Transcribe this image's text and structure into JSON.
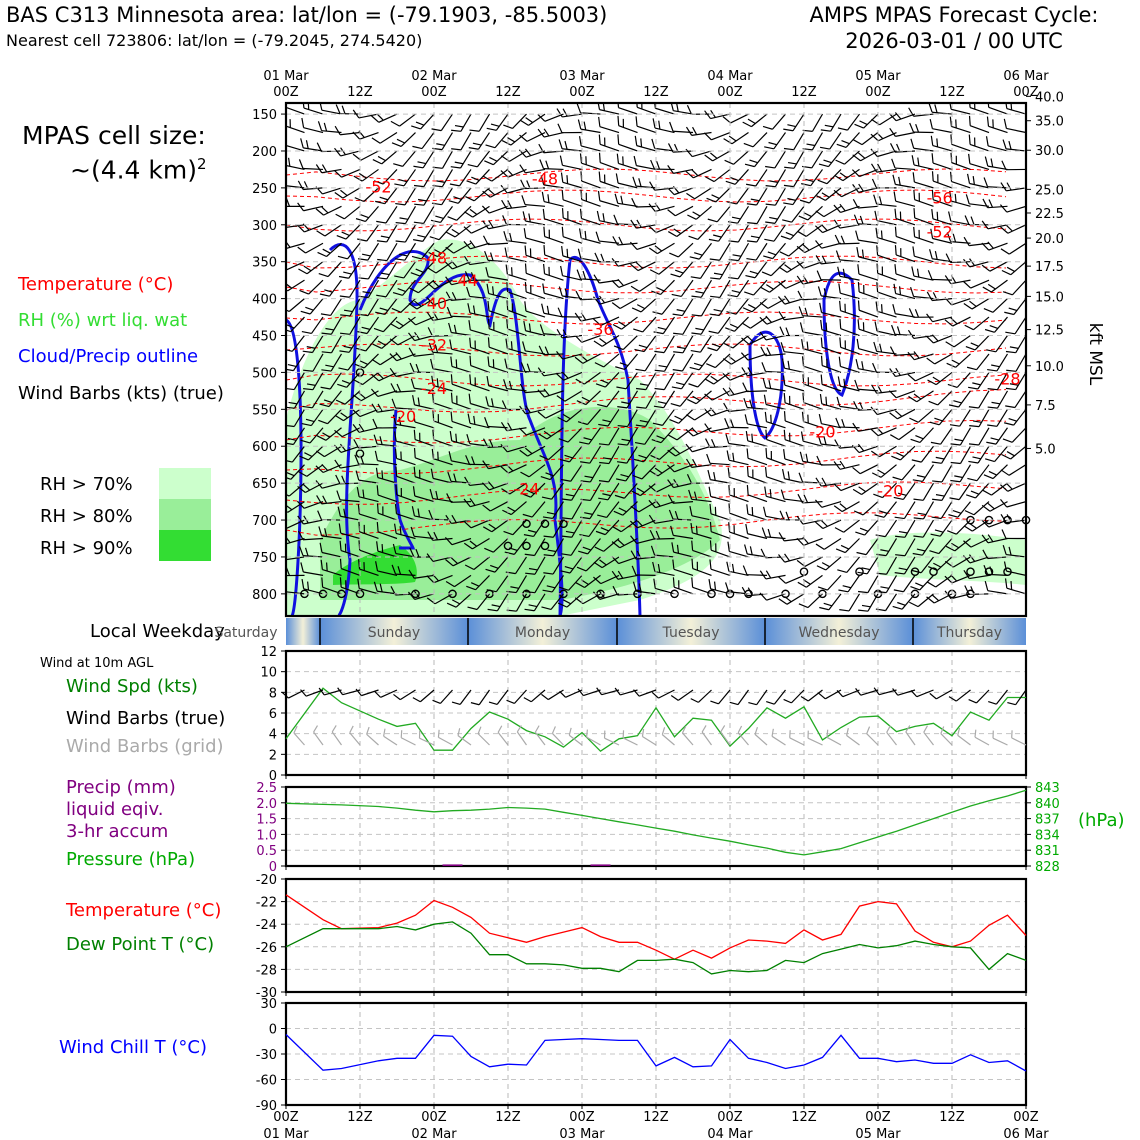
{
  "header": {
    "title_left": "BAS C313 Minnesota area: lat/lon = (-79.1903, -85.5003)",
    "subtitle_left": "Nearest cell 723806: lat/lon = (-79.2045, 274.5420)",
    "title_right_1": "AMPS MPAS Forecast Cycle:",
    "title_right_2": "2026-03-01 / 00 UTC"
  },
  "cell_size": {
    "line1": "MPAS cell size:",
    "line2_prefix": "~(4.4 km)",
    "line2_sup": "2"
  },
  "legend_top": [
    {
      "text": "Temperature (°C)",
      "color": "#ff0000"
    },
    {
      "text": "RH (%) wrt liq. wat",
      "color": "#33dd33"
    },
    {
      "text": "Cloud/Precip outline",
      "color": "#0000ff"
    },
    {
      "text": "Wind Barbs (kts) (true)",
      "color": "#000000"
    }
  ],
  "rh_legend": [
    {
      "text": "RH > 70%",
      "color": "#ccffcc"
    },
    {
      "text": "RH > 80%",
      "color": "#99ee99"
    },
    {
      "text": "RH > 90%",
      "color": "#33dd33"
    }
  ],
  "time_axis": {
    "top_days": [
      "01 Mar",
      "02 Mar",
      "03 Mar",
      "04 Mar",
      "05 Mar",
      "06 Mar"
    ],
    "hour_labels": [
      "00Z",
      "12Z",
      "00Z",
      "12Z",
      "00Z",
      "12Z",
      "00Z",
      "12Z",
      "00Z",
      "12Z",
      "00Z"
    ],
    "hour_step": 12,
    "total_hours": 120
  },
  "panel1": {
    "type": "cross-section",
    "pressure_ticks": [
      150,
      200,
      250,
      300,
      350,
      400,
      450,
      500,
      550,
      600,
      650,
      700,
      750,
      800
    ],
    "pressure_range": [
      135,
      830
    ],
    "height_axis_label": "kft MSL",
    "height_ticks": [
      {
        "p": 126,
        "label": "40.0"
      },
      {
        "p": 159,
        "label": "35.0"
      },
      {
        "p": 199,
        "label": "30.0"
      },
      {
        "p": 252,
        "label": "25.0"
      },
      {
        "p": 284,
        "label": "22.5"
      },
      {
        "p": 318,
        "label": "20.0"
      },
      {
        "p": 356,
        "label": "17.5"
      },
      {
        "p": 397,
        "label": "15.0"
      },
      {
        "p": 442,
        "label": "12.5"
      },
      {
        "p": 491,
        "label": "10.0"
      },
      {
        "p": 544,
        "label": "7.5"
      },
      {
        "p": 603,
        "label": "5.0"
      }
    ],
    "temp_labels": [
      {
        "text": "-52",
        "hour": 15,
        "p": 248
      },
      {
        "text": "-48",
        "hour": 42,
        "p": 237
      },
      {
        "text": "-56",
        "hour": 106,
        "p": 263
      },
      {
        "text": "-52",
        "hour": 106,
        "p": 309
      },
      {
        "text": "-48",
        "hour": 24,
        "p": 344
      },
      {
        "text": "-44",
        "hour": 29,
        "p": 375
      },
      {
        "text": "-40",
        "hour": 24,
        "p": 406
      },
      {
        "text": "-36",
        "hour": 51,
        "p": 441
      },
      {
        "text": "-32",
        "hour": 24,
        "p": 462
      },
      {
        "text": "-28",
        "hour": 117,
        "p": 508
      },
      {
        "text": "-24",
        "hour": 24,
        "p": 521
      },
      {
        "text": "-20",
        "hour": 19,
        "p": 559
      },
      {
        "text": "-20",
        "hour": 87,
        "p": 580
      },
      {
        "text": "-24",
        "hour": 39,
        "p": 657
      },
      {
        "text": "-20",
        "hour": 98,
        "p": 660
      }
    ]
  },
  "weekday_strip": {
    "label": "Local Weekday",
    "days": [
      "Saturday",
      "Sunday",
      "Monday",
      "Tuesday",
      "Wednesday",
      "Thursday"
    ]
  },
  "panel2": {
    "title": "Wind at 10m AGL",
    "legend": [
      {
        "text": "Wind Spd (kts)",
        "color": "#008000"
      },
      {
        "text": "Wind Barbs (true)",
        "color": "#000000"
      },
      {
        "text": "Wind Barbs (grid)",
        "color": "#aaaaaa"
      }
    ],
    "y_ticks": [
      0,
      2,
      4,
      6,
      8,
      10,
      12
    ],
    "ylim": [
      0,
      12
    ]
  },
  "panel3": {
    "legend": [
      {
        "text": "Precip (mm)",
        "color": "#800080"
      },
      {
        "text": "liquid eqiv.",
        "color": "#800080"
      },
      {
        "text": "3-hr accum",
        "color": "#800080"
      },
      {
        "text": "Pressure (hPa)",
        "color": "#00aa00"
      }
    ],
    "precip_ticks": [
      "0",
      "0.5",
      "1.0",
      "1.5",
      "2.0",
      "2.5"
    ],
    "precip_ylim": [
      0,
      2.5
    ],
    "pressure_ticks": [
      "828",
      "831",
      "834",
      "837",
      "840",
      "843"
    ],
    "pressure_ylim": [
      828,
      843
    ],
    "pressure_unit": "(hPa)"
  },
  "panel4": {
    "legend": [
      {
        "text": "Temperature (°C)",
        "color": "#ff0000"
      },
      {
        "text": "Dew Point T (°C)",
        "color": "#008000"
      }
    ],
    "y_ticks": [
      -30,
      -28,
      -26,
      -24,
      -22,
      -20
    ],
    "ylim": [
      -30,
      -20
    ]
  },
  "panel5": {
    "legend": [
      {
        "text": "Wind Chill T (°C)",
        "color": "#0000ff"
      }
    ],
    "y_ticks": [
      -90,
      -60,
      -30,
      0,
      30
    ],
    "ylim": [
      -90,
      30
    ]
  },
  "chart_data": {
    "type": "line",
    "x_hours": [
      0,
      6,
      9,
      15,
      18,
      21,
      24,
      27,
      30,
      33,
      36,
      39,
      42,
      45,
      48,
      51,
      54,
      57,
      60,
      63,
      66,
      69,
      72,
      75,
      78,
      81,
      84,
      87,
      90,
      93,
      96,
      99,
      102,
      105,
      108,
      111,
      114,
      117,
      120
    ],
    "series": [
      {
        "name": "Wind Spd (kts)",
        "panel": 2,
        "values": [
          3.5,
          8.4,
          7.0,
          5.4,
          4.7,
          5.0,
          2.4,
          2.4,
          4.5,
          6.1,
          5.4,
          4.3,
          3.7,
          2.7,
          4.1,
          2.3,
          3.5,
          3.8,
          6.5,
          3.7,
          5.5,
          5.3,
          2.8,
          4.5,
          6.5,
          5.5,
          6.6,
          3.4,
          4.6,
          5.6,
          5.7,
          4.2,
          4.7,
          5.0,
          3.8,
          6.1,
          5.3,
          7.5,
          7.5
        ]
      },
      {
        "name": "Pressure (hPa)",
        "panel": 3,
        "values": [
          839.9,
          839.7,
          839.6,
          839.3,
          839.0,
          838.6,
          838.3,
          838.5,
          838.6,
          838.8,
          839.1,
          839.0,
          838.8,
          838.2,
          837.6,
          837.0,
          836.4,
          835.8,
          835.2,
          834.6,
          833.9,
          833.3,
          832.7,
          832.0,
          831.4,
          830.6,
          830.1,
          830.7,
          831.3,
          832.4,
          833.5,
          834.6,
          835.8,
          837.0,
          838.2,
          839.4,
          840.4,
          841.3,
          842.4
        ]
      },
      {
        "name": "Temperature (°C)",
        "panel": 4,
        "values": [
          -21.4,
          -23.6,
          -24.4,
          -24.3,
          -23.9,
          -23.2,
          -21.9,
          -22.5,
          -23.4,
          -24.8,
          -25.2,
          -25.6,
          -25.1,
          -24.7,
          -24.3,
          -25.1,
          -25.6,
          -25.6,
          -26.3,
          -27.1,
          -26.3,
          -27.0,
          -26.1,
          -25.4,
          -25.5,
          -25.7,
          -24.5,
          -25.4,
          -24.9,
          -22.4,
          -22.0,
          -22.2,
          -24.6,
          -25.6,
          -26.0,
          -25.5,
          -24.1,
          -23.2,
          -25.0
        ]
      },
      {
        "name": "Dew Point T (°C)",
        "panel": 4,
        "values": [
          -26.0,
          -24.4,
          -24.4,
          -24.4,
          -24.2,
          -24.5,
          -24.0,
          -23.8,
          -24.8,
          -26.7,
          -26.7,
          -27.5,
          -27.5,
          -27.6,
          -27.9,
          -27.9,
          -28.2,
          -27.2,
          -27.2,
          -27.1,
          -27.4,
          -28.4,
          -28.1,
          -28.2,
          -28.1,
          -27.2,
          -27.4,
          -26.6,
          -26.2,
          -25.8,
          -26.1,
          -25.9,
          -25.5,
          -25.8,
          -26.0,
          -26.1,
          -28.0,
          -26.6,
          -27.2
        ]
      },
      {
        "name": "Wind Chill T (°C)",
        "panel": 5,
        "values": [
          -7,
          -49,
          -47,
          -38,
          -35,
          -35,
          -8,
          -9,
          -33,
          -45,
          -42,
          -43,
          -14,
          -13,
          -12,
          -13,
          -14,
          -14,
          -44,
          -34,
          -45,
          -44,
          -13,
          -35,
          -40,
          -47,
          -43,
          -34,
          -8,
          -35,
          -35,
          -39,
          -37,
          -41,
          -41,
          -31,
          -40,
          -38,
          -50
        ]
      },
      {
        "name": "Precip (mm)",
        "panel": 3,
        "values": [
          0,
          0,
          0,
          0,
          0,
          0,
          0,
          0.05,
          0,
          0,
          0,
          0,
          0,
          0,
          0,
          0.05,
          0,
          0,
          0,
          0,
          0,
          0,
          0,
          0,
          0,
          0,
          0,
          0,
          0,
          0,
          0,
          0,
          0,
          0,
          0,
          0,
          0,
          0,
          0
        ]
      }
    ],
    "xlim": [
      0,
      120
    ]
  }
}
